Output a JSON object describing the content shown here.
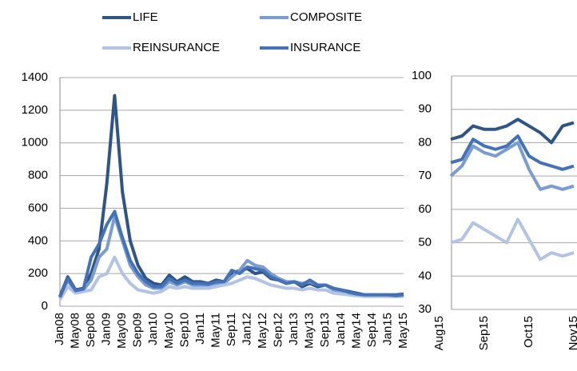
{
  "chart_data": [
    {
      "type": "line",
      "categories": [
        "Jan08",
        null,
        "May08",
        null,
        "Sep08",
        null,
        "Jan09",
        null,
        "May09",
        null,
        "Sep09",
        null,
        "Jan10",
        null,
        "May10",
        null,
        "Sep10",
        null,
        "Jan11",
        null,
        "May11",
        null,
        "Sep11",
        null,
        "Jan12",
        null,
        "May12",
        null,
        "Sep12",
        null,
        "Jan13",
        null,
        "May13",
        null,
        "Sep13",
        null,
        "Jan14",
        null,
        "May14",
        null,
        "Sep14",
        null,
        "Jan15",
        null,
        "May15"
      ],
      "ylim": [
        0,
        1400
      ],
      "yticks": [
        0,
        200,
        400,
        600,
        800,
        1000,
        1200,
        1400
      ],
      "grid": true,
      "series": [
        {
          "name": "LIFE",
          "color": "#2f5587",
          "values": [
            60,
            180,
            100,
            110,
            200,
            350,
            750,
            1290,
            700,
            400,
            250,
            170,
            140,
            130,
            190,
            150,
            180,
            150,
            150,
            140,
            160,
            150,
            200,
            220,
            230,
            200,
            210,
            170,
            160,
            140,
            150,
            120,
            140,
            120,
            130,
            110,
            100,
            90,
            80,
            70,
            70,
            70,
            70,
            70,
            75
          ]
        },
        {
          "name": "COMPOSITE",
          "color": "#7a9cd0",
          "values": [
            50,
            160,
            90,
            100,
            160,
            300,
            350,
            550,
            400,
            250,
            180,
            130,
            110,
            110,
            150,
            130,
            150,
            130,
            130,
            130,
            140,
            140,
            180,
            220,
            280,
            250,
            240,
            200,
            170,
            150,
            150,
            140,
            150,
            130,
            130,
            100,
            90,
            80,
            70,
            70,
            70,
            65,
            65,
            65,
            70
          ]
        },
        {
          "name": "REINSURANCE",
          "color": "#b3c3e3",
          "values": [
            40,
            120,
            80,
            90,
            100,
            180,
            200,
            300,
            200,
            140,
            100,
            90,
            80,
            90,
            120,
            110,
            120,
            110,
            110,
            110,
            120,
            130,
            140,
            160,
            180,
            170,
            150,
            130,
            120,
            110,
            110,
            100,
            110,
            100,
            100,
            80,
            75,
            70,
            65,
            60,
            60,
            60,
            60,
            60,
            60
          ]
        },
        {
          "name": "INSURANCE",
          "color": "#4472b8",
          "values": [
            55,
            170,
            95,
            105,
            300,
            380,
            500,
            580,
            420,
            280,
            200,
            150,
            120,
            120,
            170,
            140,
            160,
            140,
            140,
            135,
            150,
            150,
            220,
            200,
            240,
            230,
            220,
            180,
            160,
            140,
            150,
            130,
            160,
            130,
            130,
            110,
            100,
            85,
            75,
            70,
            70,
            70,
            70,
            65,
            70
          ]
        }
      ]
    },
    {
      "type": "line",
      "categories": [
        "Aug15",
        null,
        null,
        null,
        "Sep15",
        null,
        null,
        null,
        "Oct15",
        null,
        null,
        null,
        "Nov15"
      ],
      "ylim": [
        30,
        100
      ],
      "yticks": [
        30,
        40,
        50,
        60,
        70,
        80,
        90,
        100
      ],
      "grid": true,
      "series": [
        {
          "color": "#2f5587",
          "values": [
            null,
            81,
            82,
            85,
            84,
            84,
            85,
            87,
            85,
            83,
            80,
            85,
            86
          ]
        },
        {
          "color": "#7a9cd0",
          "values": [
            null,
            70,
            73,
            79,
            77,
            76,
            78,
            80,
            72,
            66,
            67,
            66,
            67
          ]
        },
        {
          "color": "#b3c3e3",
          "values": [
            null,
            50,
            51,
            56,
            54,
            52,
            50,
            57,
            51,
            45,
            47,
            46,
            47
          ]
        },
        {
          "color": "#4472b8",
          "values": [
            null,
            74,
            75,
            81,
            79,
            78,
            79,
            82,
            76,
            74,
            73,
            72,
            73
          ]
        }
      ]
    }
  ]
}
